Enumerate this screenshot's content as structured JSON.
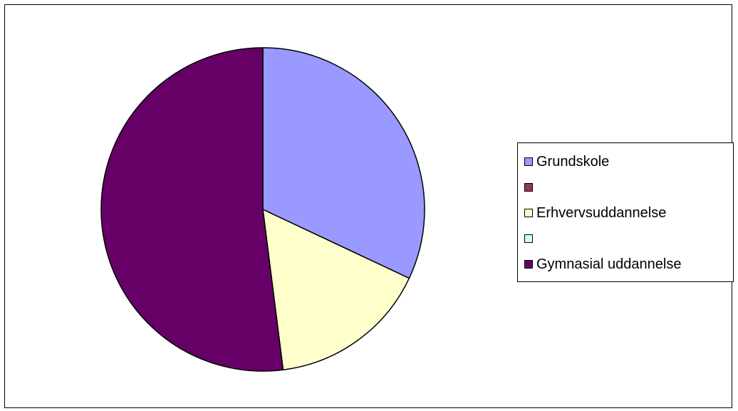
{
  "chart_data": {
    "type": "pie",
    "categories": [
      "Grundskole",
      "",
      "Erhvervsuddannelse",
      "",
      "Gymnasial uddannelse"
    ],
    "values": [
      32,
      0,
      16,
      0,
      52
    ],
    "colors": [
      "#9999ff",
      "#993366",
      "#ffffcc",
      "#ccffff",
      "#660066"
    ],
    "legend_position": "right"
  }
}
